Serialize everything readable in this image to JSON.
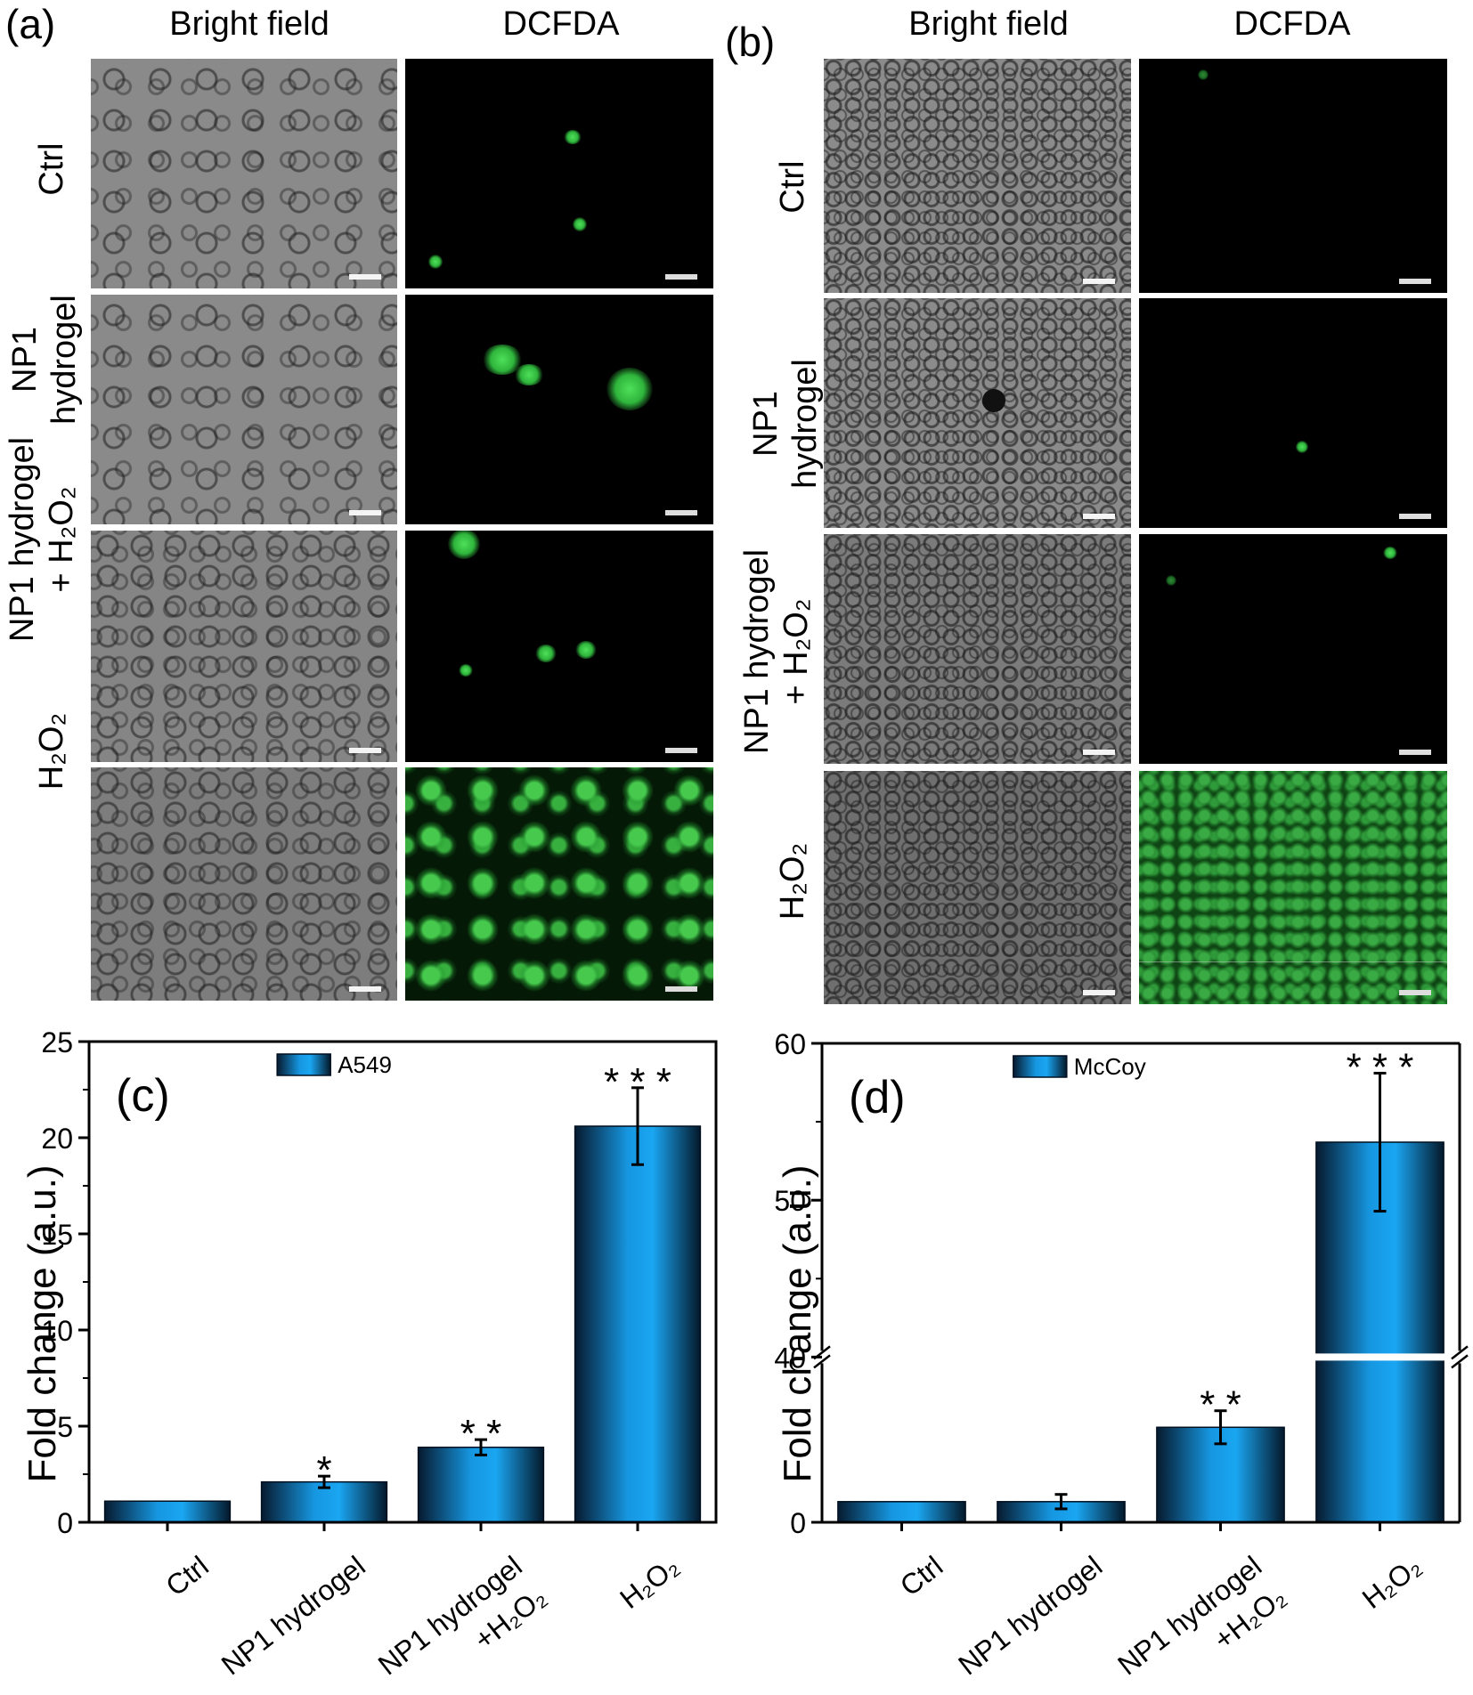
{
  "panel_a": {
    "letter": "(a)",
    "columns": [
      "Bright field",
      "DCFDA"
    ],
    "rows": [
      {
        "lines": [
          "Ctrl"
        ]
      },
      {
        "lines": [
          "NP1",
          "hydrogel"
        ]
      },
      {
        "lines": [
          "NP1 hydrogel",
          "+ H₂O₂"
        ]
      },
      {
        "lines": [
          "H₂O₂"
        ]
      }
    ]
  },
  "panel_b": {
    "letter": "(b)",
    "columns": [
      "Bright field",
      "DCFDA"
    ],
    "rows": [
      {
        "lines": [
          "Ctrl"
        ]
      },
      {
        "lines": [
          "NP1",
          "hydrogel"
        ]
      },
      {
        "lines": [
          "NP1 hydrogel",
          "+ H₂O₂"
        ]
      },
      {
        "lines": [
          "H₂O₂"
        ]
      }
    ]
  },
  "chart_data": [
    {
      "type": "bar",
      "panel": "(c)",
      "ylabel": "Fold change (a.u.)",
      "legend": "A549",
      "legend_position": "top-center",
      "categories": [
        "Ctrl",
        "NP1 hydrogel",
        "NP1 hydrogel +H₂O₂",
        "H₂O₂"
      ],
      "category_lines": [
        [
          "Ctrl"
        ],
        [
          "NP1 hydrogel"
        ],
        [
          "NP1 hydrogel",
          "+H₂O₂"
        ],
        [
          "H₂O₂"
        ]
      ],
      "values": [
        1.1,
        2.1,
        3.9,
        20.6
      ],
      "errors": [
        0,
        0.3,
        0.4,
        2.0
      ],
      "significance": [
        "",
        "*",
        "* *",
        "* * *"
      ],
      "ylim": [
        0,
        25
      ],
      "yticks": [
        0,
        5,
        10,
        15,
        20,
        25
      ],
      "grid": false,
      "color": "#1aa0ec"
    },
    {
      "type": "bar",
      "panel": "(d)",
      "ylabel": "Fold change (a.u.)",
      "legend": "McCoy",
      "legend_position": "top-center",
      "categories": [
        "Ctrl",
        "NP1 hydrogel",
        "NP1 hydrogel +H₂O₂",
        "H₂O₂"
      ],
      "category_lines": [
        [
          "Ctrl"
        ],
        [
          "NP1 hydrogel"
        ],
        [
          "NP1 hydrogel",
          "+H₂O₂"
        ],
        [
          "H₂O₂"
        ]
      ],
      "values": [
        1.0,
        1.0,
        4.6,
        53.7
      ],
      "errors": [
        0,
        0.35,
        0.8,
        4.4
      ],
      "significance": [
        "",
        "",
        "* *",
        "* * *"
      ],
      "ylim": [
        0,
        60
      ],
      "axis_break": [
        8,
        40
      ],
      "yticks": [
        0,
        40,
        50,
        60
      ],
      "grid": false,
      "color": "#1aa0ec"
    }
  ]
}
